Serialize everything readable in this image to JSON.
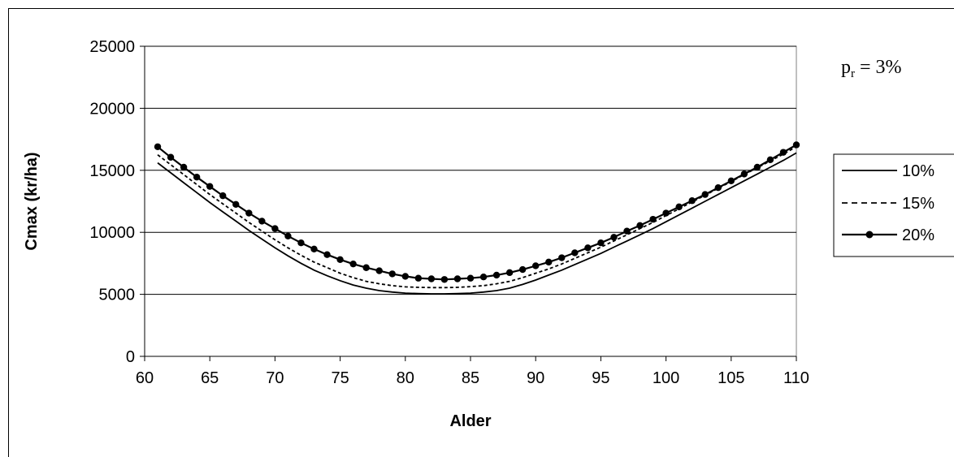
{
  "chart_data": {
    "type": "line",
    "xlabel": "Alder",
    "ylabel": "Cmax (kr/ha)",
    "xlim": [
      60,
      110
    ],
    "ylim": [
      0,
      25000
    ],
    "xticks": [
      60,
      65,
      70,
      75,
      80,
      85,
      90,
      95,
      100,
      105,
      110
    ],
    "yticks": [
      0,
      5000,
      10000,
      15000,
      20000,
      25000
    ],
    "grid": "horizontal",
    "legend_position": "right",
    "annotation": {
      "main": "p",
      "sub": "r",
      "rest": " = 3%"
    },
    "x": [
      61,
      62,
      63,
      64,
      65,
      66,
      67,
      68,
      69,
      70,
      71,
      72,
      73,
      74,
      75,
      76,
      77,
      78,
      79,
      80,
      81,
      82,
      83,
      84,
      85,
      86,
      87,
      88,
      89,
      90,
      91,
      92,
      93,
      94,
      95,
      96,
      97,
      98,
      99,
      100,
      101,
      102,
      103,
      104,
      105,
      106,
      107,
      108,
      109,
      110
    ],
    "series": [
      {
        "name": "10%",
        "style": "solid",
        "markers": false,
        "color": "#000000",
        "values": [
          15600,
          14800,
          14000,
          13200,
          12400,
          11650,
          10900,
          10150,
          9450,
          8750,
          8100,
          7500,
          6950,
          6500,
          6100,
          5750,
          5500,
          5300,
          5180,
          5100,
          5060,
          5040,
          5040,
          5060,
          5100,
          5180,
          5300,
          5500,
          5800,
          6150,
          6550,
          6950,
          7400,
          7850,
          8300,
          8800,
          9300,
          9800,
          10300,
          10850,
          11400,
          11950,
          12500,
          13050,
          13600,
          14150,
          14700,
          15250,
          15800,
          16400
        ]
      },
      {
        "name": "15%",
        "style": "dashed",
        "markers": false,
        "color": "#000000",
        "values": [
          16250,
          15450,
          14650,
          13850,
          13050,
          12300,
          11550,
          10800,
          10100,
          9400,
          8750,
          8150,
          7600,
          7150,
          6700,
          6350,
          6050,
          5850,
          5700,
          5600,
          5560,
          5540,
          5540,
          5560,
          5620,
          5700,
          5850,
          6050,
          6350,
          6700,
          7050,
          7450,
          7900,
          8350,
          8800,
          9300,
          9800,
          10300,
          10800,
          11350,
          11900,
          12450,
          13000,
          13550,
          14100,
          14650,
          15200,
          15750,
          16300,
          16900
        ]
      },
      {
        "name": "20%",
        "style": "solid",
        "markers": true,
        "color": "#000000",
        "values": [
          16900,
          16050,
          15250,
          14450,
          13700,
          12950,
          12250,
          11550,
          10900,
          10300,
          9700,
          9150,
          8650,
          8200,
          7800,
          7450,
          7150,
          6900,
          6650,
          6450,
          6300,
          6250,
          6200,
          6250,
          6300,
          6400,
          6550,
          6750,
          7000,
          7300,
          7600,
          7950,
          8350,
          8750,
          9150,
          9600,
          10100,
          10550,
          11050,
          11550,
          12050,
          12550,
          13050,
          13600,
          14150,
          14700,
          15250,
          15850,
          16450,
          17050
        ]
      }
    ]
  }
}
